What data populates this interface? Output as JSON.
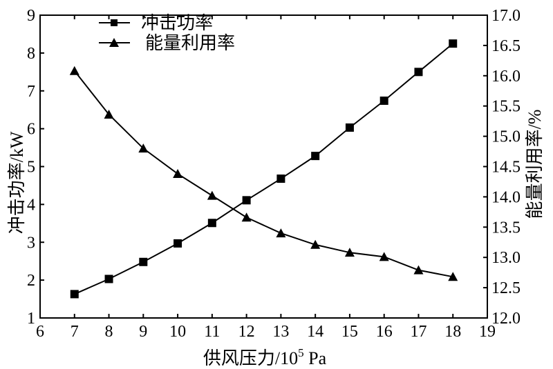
{
  "chart_data": {
    "type": "line",
    "x": [
      7,
      8,
      9,
      10,
      11,
      12,
      13,
      14,
      15,
      16,
      17,
      18
    ],
    "xlabel": "供风压力/10",
    "xlabel_sup": "5",
    "xlabel_unit": " Pa",
    "xlim": [
      6,
      19
    ],
    "xticks": [
      "6",
      "7",
      "8",
      "9",
      "10",
      "11",
      "12",
      "13",
      "14",
      "15",
      "16",
      "17",
      "18",
      "19"
    ],
    "ylabel_left": "冲击功率/kW",
    "ylim_left": [
      1,
      9
    ],
    "yticks_left": [
      "1",
      "2",
      "3",
      "4",
      "5",
      "6",
      "7",
      "8",
      "9"
    ],
    "ylabel_right": "能量利用率/%",
    "ylim_right": [
      12.0,
      17.0
    ],
    "yticks_right": [
      "12.0",
      "12.5",
      "13.0",
      "13.5",
      "14.0",
      "14.5",
      "15.0",
      "15.5",
      "16.0",
      "16.5",
      "17.0"
    ],
    "series": [
      {
        "name": "冲击功率",
        "axis": "left",
        "marker": "square",
        "values": [
          1.63,
          2.03,
          2.48,
          2.97,
          3.51,
          4.11,
          4.68,
          5.28,
          6.03,
          6.74,
          7.5,
          8.25
        ]
      },
      {
        "name": "能量利用率",
        "axis": "right",
        "marker": "triangle",
        "values": [
          16.08,
          15.36,
          14.8,
          14.38,
          14.02,
          13.66,
          13.4,
          13.21,
          13.08,
          13.01,
          12.79,
          12.68
        ]
      }
    ],
    "legend_position": "top-left",
    "grid": false
  }
}
